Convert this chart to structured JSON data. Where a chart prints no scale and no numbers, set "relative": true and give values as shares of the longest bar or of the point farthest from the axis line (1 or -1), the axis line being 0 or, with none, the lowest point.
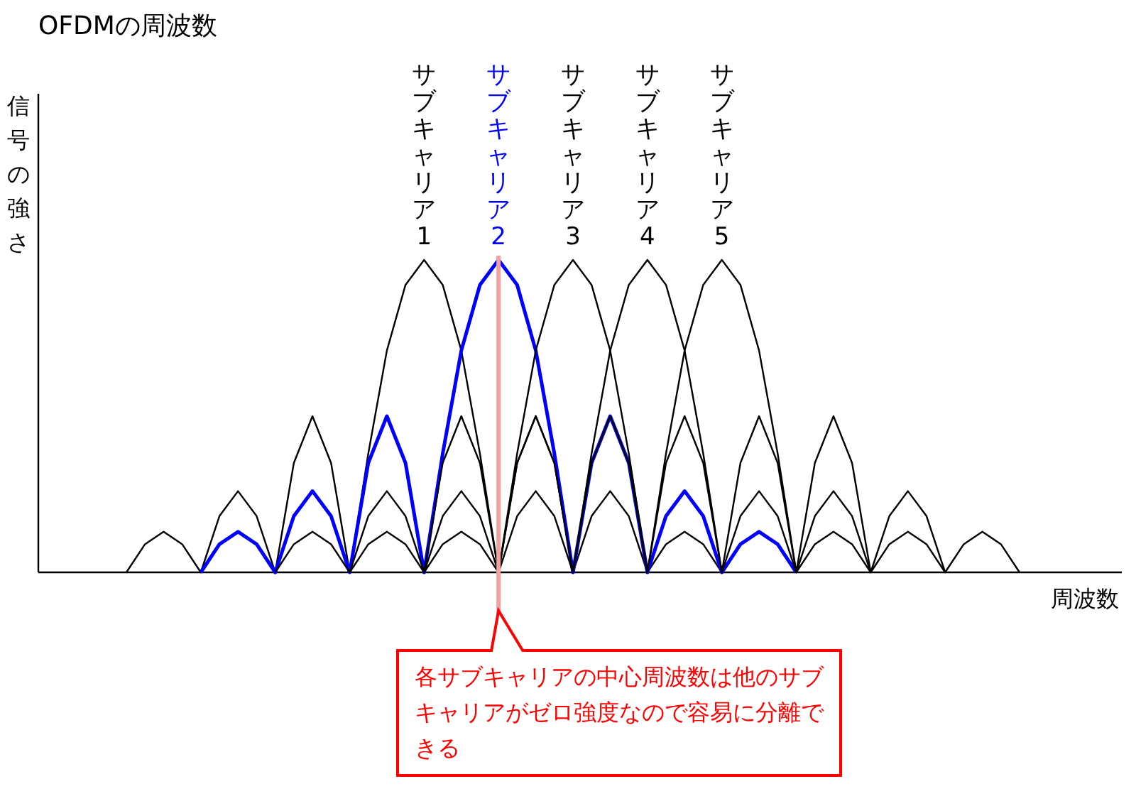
{
  "chart_data": {
    "type": "line",
    "title": "OFDMの周波数",
    "xlabel": "周波数",
    "ylabel": "信号の強さ",
    "relative": true,
    "categories": [
      null,
      null,
      null,
      null,
      null,
      null,
      null,
      null,
      null,
      null,
      null,
      null,
      null,
      null,
      null,
      null,
      null,
      null,
      null,
      null,
      null,
      null,
      null,
      null,
      null,
      null,
      null,
      null,
      null,
      null,
      null,
      null,
      null,
      null,
      null,
      null,
      null,
      null,
      null,
      null,
      null,
      null,
      null,
      null,
      null,
      null,
      null,
      null,
      null
    ],
    "series": [
      {
        "name": "サブキャリア1",
        "color": "#000000",
        "values": [
          0,
          0.09,
          0.13,
          0.09,
          0,
          0.18,
          0.26,
          0.18,
          0,
          0.35,
          0.5,
          0.35,
          0,
          0.38,
          0.71,
          0.92,
          1,
          0.92,
          0.71,
          0.38,
          0,
          0.35,
          0.5,
          0.35,
          0,
          0.18,
          0.26,
          0.18,
          0,
          0.09,
          0.13,
          0.09,
          0,
          null,
          null,
          null,
          null,
          null,
          null,
          null,
          null,
          null,
          null,
          null,
          null,
          null,
          null,
          null,
          null
        ]
      },
      {
        "name": "サブキャリア2",
        "color": "#0000ff",
        "values": [
          null,
          null,
          null,
          null,
          0,
          0.09,
          0.13,
          0.09,
          0,
          0.18,
          0.26,
          0.18,
          0,
          0.35,
          0.5,
          0.35,
          0,
          0.38,
          0.71,
          0.92,
          1,
          0.92,
          0.71,
          0.38,
          0,
          0.35,
          0.5,
          0.35,
          0,
          0.18,
          0.26,
          0.18,
          0,
          0.09,
          0.13,
          0.09,
          0,
          null,
          null,
          null,
          null,
          null,
          null,
          null,
          null,
          null,
          null,
          null,
          null
        ]
      },
      {
        "name": "サブキャリア3",
        "color": "#000000",
        "values": [
          null,
          null,
          null,
          null,
          null,
          null,
          null,
          null,
          0,
          0.09,
          0.13,
          0.09,
          0,
          0.18,
          0.26,
          0.18,
          0,
          0.35,
          0.5,
          0.35,
          0,
          0.38,
          0.71,
          0.92,
          1,
          0.92,
          0.71,
          0.38,
          0,
          0.35,
          0.5,
          0.35,
          0,
          0.18,
          0.26,
          0.18,
          0,
          0.09,
          0.13,
          0.09,
          0,
          null,
          null,
          null,
          null,
          null,
          null,
          null,
          null
        ]
      },
      {
        "name": "サブキャリア4",
        "color": "#000000",
        "values": [
          null,
          null,
          null,
          null,
          null,
          null,
          null,
          null,
          null,
          null,
          null,
          null,
          0,
          0.09,
          0.13,
          0.09,
          0,
          0.18,
          0.26,
          0.18,
          0,
          0.35,
          0.5,
          0.35,
          0,
          0.38,
          0.71,
          0.92,
          1,
          0.92,
          0.71,
          0.38,
          0,
          0.35,
          0.5,
          0.35,
          0,
          0.18,
          0.26,
          0.18,
          0,
          0.09,
          0.13,
          0.09,
          0,
          null,
          null,
          null,
          null
        ]
      },
      {
        "name": "サブキャリア5",
        "color": "#000000",
        "values": [
          null,
          null,
          null,
          null,
          null,
          null,
          null,
          null,
          null,
          null,
          null,
          null,
          null,
          null,
          null,
          null,
          0,
          0.09,
          0.13,
          0.09,
          0,
          0.18,
          0.26,
          0.18,
          0,
          0.35,
          0.5,
          0.35,
          0,
          0.38,
          0.71,
          0.92,
          1,
          0.92,
          0.71,
          0.38,
          0,
          0.35,
          0.5,
          0.35,
          0,
          0.18,
          0.26,
          0.18,
          0,
          0.09,
          0.13,
          0.09,
          0
        ]
      }
    ],
    "ref_lines": [
      {
        "axis": "x",
        "color": "#f4a0a0"
      }
    ],
    "annotations": [
      "各サブキャリアの中心周波数は他のサブキャリアがゼロ強度なので容易に分離できる"
    ]
  }
}
